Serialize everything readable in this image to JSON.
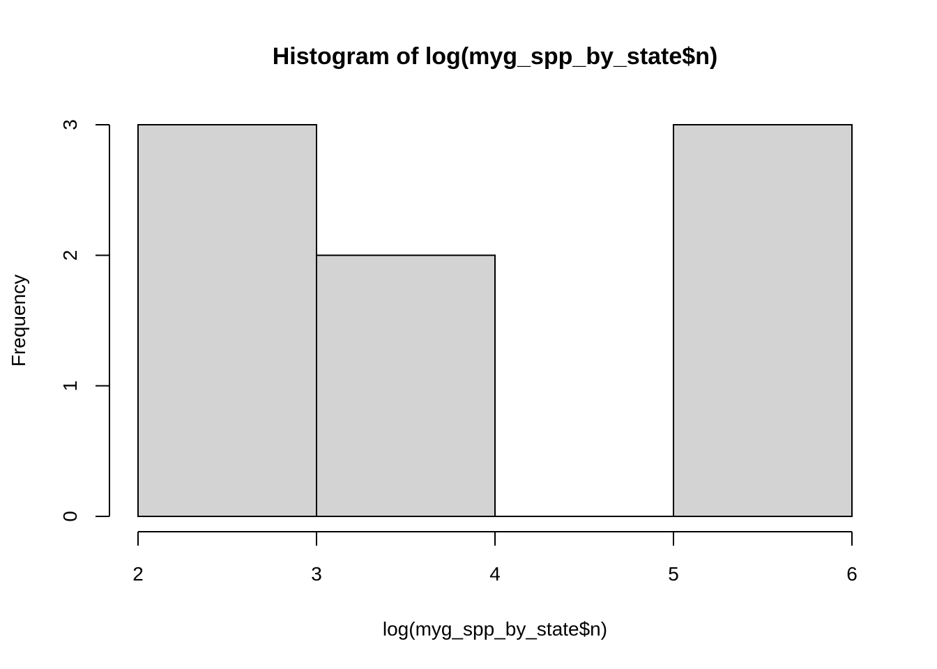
{
  "chart_data": {
    "type": "bar",
    "title": "Histogram of log(myg_spp_by_state$n)",
    "xlabel": "log(myg_spp_by_state$n)",
    "ylabel": "Frequency",
    "bins": [
      {
        "start": 2,
        "end": 3,
        "count": 3
      },
      {
        "start": 3,
        "end": 4,
        "count": 2
      },
      {
        "start": 4,
        "end": 5,
        "count": 0
      },
      {
        "start": 5,
        "end": 6,
        "count": 3
      }
    ],
    "xlim": [
      2,
      6
    ],
    "ylim": [
      0,
      3
    ],
    "x_ticks": [
      "2",
      "3",
      "4",
      "5",
      "6"
    ],
    "y_ticks": [
      "0",
      "1",
      "2",
      "3"
    ],
    "bar_fill": "#d3d3d3",
    "grid": false,
    "legend": "none"
  }
}
